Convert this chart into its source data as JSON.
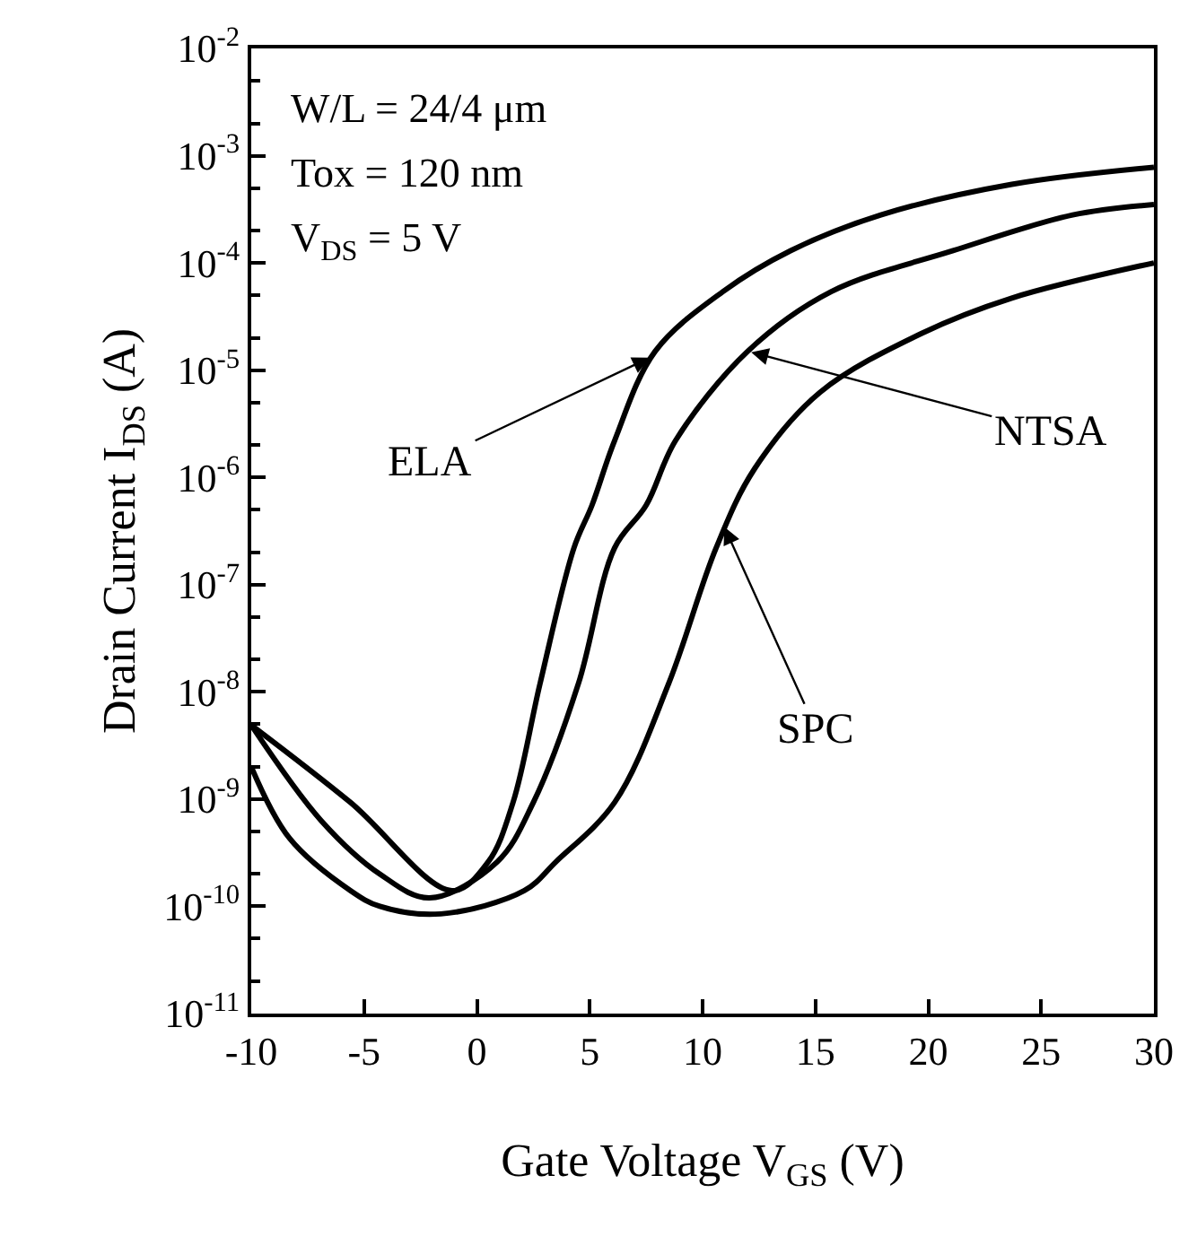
{
  "chart_data": {
    "type": "line",
    "xlabel": "Gate Voltage V$_{GS}$ (V)",
    "ylabel": "Drain Current I$_{DS}$ (A)",
    "log": "y",
    "xlim": [
      -10,
      30
    ],
    "xticks": [
      -10,
      -5,
      0,
      5,
      10,
      15,
      20,
      25,
      30
    ],
    "ylim": [
      1e-11,
      0.01
    ],
    "yticks": [
      {
        "value": 0.01,
        "label": "10$^{-2}$"
      },
      {
        "value": 0.001,
        "label": "10$^{-3}$"
      },
      {
        "value": 0.0001,
        "label": "10$^{-4}$"
      },
      {
        "value": 1e-05,
        "label": "10$^{-5}$"
      },
      {
        "value": 1e-06,
        "label": "10$^{-6}$"
      },
      {
        "value": 1e-07,
        "label": "10$^{-7}$"
      },
      {
        "value": 1e-08,
        "label": "10$^{-8}$"
      },
      {
        "value": 1e-09,
        "label": "10$^{-9}$"
      },
      {
        "value": 1e-10,
        "label": "10$^{-10}$"
      },
      {
        "value": 1e-11,
        "label": "10$^{-11}$"
      }
    ],
    "marker": "none",
    "line_style": "solid",
    "series": [
      {
        "color": "#000000",
        "x": [
          -10,
          -5.6,
          -1.1,
          0.5,
          1.6,
          2.8,
          4.3,
          5.1,
          6.1,
          7.9,
          10.9,
          13.9,
          17.9,
          23.7,
          30
        ],
        "values": [
          4.9e-09,
          9.3e-10,
          1.4e-10,
          2.6e-10,
          9.3e-10,
          1.2e-08,
          2.2e-07,
          5.5e-07,
          2.2e-06,
          1.5e-05,
          5.4e-05,
          0.00013,
          0.00028,
          0.00054,
          0.00078
        ]
      },
      {
        "color": "#000000",
        "x": [
          -10,
          -6.9,
          -4.3,
          -2.1,
          0.9,
          2.5,
          4.5,
          6.1,
          7.5,
          8.8,
          12.0,
          15.7,
          21.1,
          26.4,
          30
        ],
        "values": [
          4.9e-09,
          6.3e-10,
          2e-10,
          1.2e-10,
          2.6e-10,
          9.3e-10,
          1.2e-08,
          2.2e-07,
          5.5e-07,
          2.2e-06,
          1.5e-05,
          5.4e-05,
          0.00013,
          0.00028,
          0.00035
        ]
      },
      {
        "color": "#000000",
        "x": [
          -10,
          -8.3,
          -5.6,
          -4.3,
          -1.6,
          2.1,
          3.5,
          6.1,
          8.5,
          10.6,
          12.3,
          15.2,
          19.7,
          23.7,
          30
        ],
        "values": [
          2e-09,
          4.3e-10,
          1.4e-10,
          1e-10,
          8.5e-11,
          1.4e-10,
          2.6e-10,
          9.3e-10,
          1.2e-08,
          2.2e-07,
          1.2e-06,
          6.2e-06,
          2.2e-05,
          4.7e-05,
          0.0001
        ]
      }
    ],
    "annotations": [
      "W/L = 24/4 μm",
      "Tox = 120 nm",
      "V$_{DS}$ = 5 V",
      {
        "text": "ELA",
        "x": 7.8,
        "y": 1.35e-05
      },
      {
        "text": "NTSA",
        "x": 12.0,
        "y": 1.5e-05
      },
      {
        "text": "SPC",
        "x": 10.9,
        "y": 3.7e-07
      }
    ]
  }
}
